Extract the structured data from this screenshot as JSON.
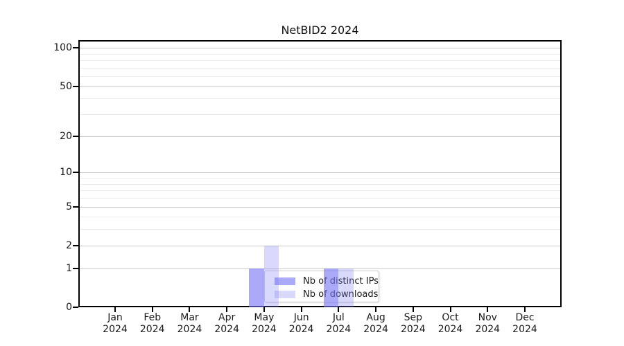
{
  "chart_data": {
    "type": "bar",
    "title": "NetBID2 2024",
    "categories": [
      "Jan",
      "Feb",
      "Mar",
      "Apr",
      "May",
      "Jun",
      "Jul",
      "Aug",
      "Sep",
      "Oct",
      "Nov",
      "Dec"
    ],
    "x_axis": {
      "year_label": "2024"
    },
    "series": [
      {
        "name": "Nb of distinct IPs",
        "color": "#7676f3",
        "opacity": 0.62,
        "values": [
          0,
          0,
          0,
          0,
          1,
          0,
          1,
          0,
          0,
          0,
          0,
          0
        ]
      },
      {
        "name": "Nb of downloads",
        "color": "#7676f3",
        "opacity": 0.28,
        "values": [
          0,
          0,
          0,
          0,
          2,
          0,
          1,
          0,
          0,
          0,
          0,
          0
        ]
      }
    ],
    "y_axis": {
      "scale": "log1p",
      "tick_labels": [
        "0",
        "1",
        "2",
        "5",
        "10",
        "20",
        "50",
        "100"
      ],
      "tick_values": [
        0,
        1,
        2,
        5,
        10,
        20,
        50,
        100
      ],
      "minor_tick_values": [
        3,
        4,
        6,
        7,
        8,
        9,
        30,
        40,
        60,
        70,
        80,
        90
      ],
      "ymax": 115
    },
    "grid": {
      "major_color": "#c9c9c9",
      "minor_color": "#ececec"
    },
    "legend": {
      "labels": [
        "Nb of distinct IPs",
        "Nb of downloads"
      ],
      "position": "lower-center"
    }
  }
}
